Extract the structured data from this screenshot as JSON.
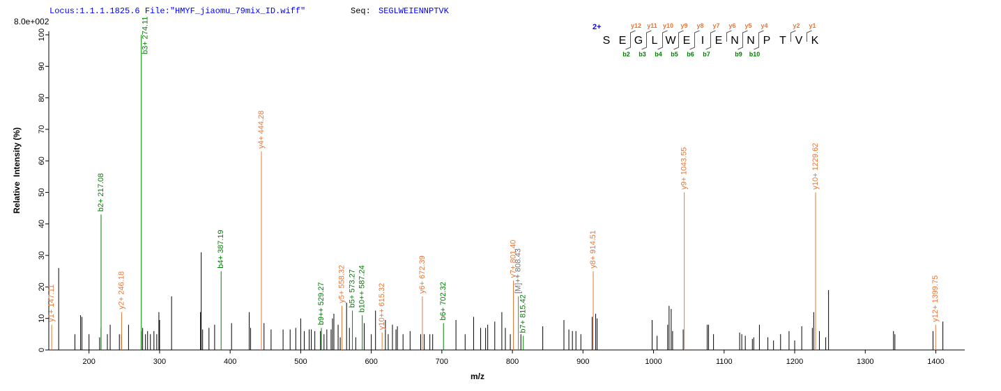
{
  "chart_data": {
    "type": "spectrum",
    "locus_text": "Locus:1.1.1.1825.6 File:\"HMYF_jiaomu_79mix_ID.wiff\"",
    "seq_label": "Seq:",
    "sequence_text": "SEGLWEIENNPTVK",
    "max_intensity": "8.0e+002",
    "charge": "2+",
    "residues": [
      "S",
      "E",
      "G",
      "L",
      "W",
      "E",
      "I",
      "E",
      "N",
      "N",
      "P",
      "T",
      "V",
      "K"
    ],
    "y_ion_labels": [
      null,
      "y12",
      "y11",
      "y10",
      "y9",
      "y8",
      "y7",
      "y6",
      "y5",
      "y4",
      null,
      "y2",
      "y1"
    ],
    "b_ion_labels": [
      null,
      "b2",
      "b3",
      "b4",
      "b5",
      "b6",
      "b7",
      null,
      "b9",
      "b10",
      null,
      null,
      null
    ],
    "x_label": "m/z",
    "y_label": "Relative  Intensity (%)",
    "xlim": [
      143,
      1441
    ],
    "ylim": [
      0,
      101
    ],
    "xticks": [
      200,
      300,
      400,
      500,
      600,
      700,
      800,
      900,
      1000,
      1100,
      1200,
      1300,
      1400
    ],
    "yticks": [
      0,
      10,
      20,
      30,
      40,
      50,
      60,
      70,
      80,
      90,
      100
    ],
    "series": [
      {
        "color": "#000000",
        "x": [
          157,
          180,
          188,
          190,
          200,
          215,
          217,
          226,
          230,
          243,
          246,
          256,
          274,
          276,
          280,
          283,
          287,
          292,
          296,
          299,
          300,
          317,
          358,
          359,
          361,
          370,
          378,
          402,
          427,
          429,
          448,
          458,
          475,
          485,
          493,
          500,
          505,
          512,
          515,
          520,
          528,
          533,
          537,
          543,
          545,
          547,
          553,
          556,
          565,
          569,
          578,
          590,
          600,
          606,
          620,
          624,
          630,
          635,
          637,
          645,
          655,
          670,
          675,
          683,
          687,
          720,
          733,
          745,
          755,
          762,
          765,
          775,
          785,
          790,
          797,
          812,
          843,
          873,
          880,
          885,
          890,
          897,
          913,
          918,
          920,
          998,
          1005,
          1020,
          1022,
          1025,
          1027,
          1042,
          1076,
          1078,
          1085,
          1122,
          1125,
          1130,
          1140,
          1142,
          1150,
          1162,
          1170,
          1180,
          1192,
          1200,
          1210,
          1225,
          1227,
          1235,
          1244,
          1248,
          1340,
          1342,
          1396,
          1410
        ],
        "values": [
          26,
          5,
          11,
          10.5,
          5,
          4,
          7,
          5,
          8,
          5,
          5,
          8,
          6,
          7,
          5,
          6,
          5,
          6,
          5,
          12,
          9.5,
          17,
          12,
          31,
          6.5,
          7,
          8,
          8.5,
          12,
          7,
          8.5,
          6.5,
          6.5,
          6.5,
          7,
          10,
          6,
          6.5,
          6.5,
          6,
          6,
          5,
          6.5,
          6.5,
          10,
          11.5,
          8,
          4,
          15,
          7,
          4,
          8.5,
          5,
          12.5,
          9.5,
          5,
          8,
          6.5,
          7.5,
          5,
          6,
          5,
          5,
          5,
          5,
          9.5,
          5,
          10.5,
          7,
          7,
          8,
          9,
          12,
          7,
          5,
          5,
          7.5,
          9.5,
          6.5,
          6,
          6,
          5,
          10.5,
          11.5,
          10,
          9.5,
          4.5,
          8,
          14,
          13,
          6,
          6.5,
          8,
          8,
          5,
          5.5,
          5,
          4.5,
          3.5,
          4,
          8,
          4,
          3,
          5,
          6,
          3,
          7.5,
          7,
          12,
          6,
          4,
          19,
          6,
          5,
          6,
          9
        ]
      },
      {
        "color": "#e8773a",
        "x": [
          147.11,
          246.18,
          444.28,
          558.32,
          615.32,
          672.39,
          801.4,
          914.51,
          1043.55,
          1229.62,
          1399.75
        ],
        "values": [
          8,
          12,
          63,
          14,
          5.5,
          17,
          22,
          25,
          50,
          50,
          8
        ],
        "labels": [
          "y1+ 147.11",
          "y2+ 246.18",
          "y4+ 444.28",
          "y5+ 558.32",
          "y10++ 615.32",
          "y6+ 672.39",
          "y7+ 801.40",
          "y8+ 914.51",
          "y9+ 1043.55",
          "y10+ 1229.62",
          "y12+ 1399.75"
        ]
      },
      {
        "color": "#008000",
        "x": [
          217.08,
          274.11,
          387.19,
          529.27,
          573.27,
          587.24,
          702.32,
          815.42
        ],
        "values": [
          43,
          100,
          25,
          7,
          12.5,
          11,
          8.5,
          4.5
        ],
        "labels": [
          "b2+ 217.08",
          "b3+ 274.11",
          "b4+ 387.19",
          "b9++ 529.27",
          "b5+ 573.27",
          "b10++ 587.24",
          "b6+ 702.32",
          "b7+ 815.42"
        ]
      },
      {
        "color": "#707070",
        "x": [
          808.43
        ],
        "values": [
          17
        ],
        "labels": [
          "[M]++ 808.43"
        ]
      }
    ]
  }
}
